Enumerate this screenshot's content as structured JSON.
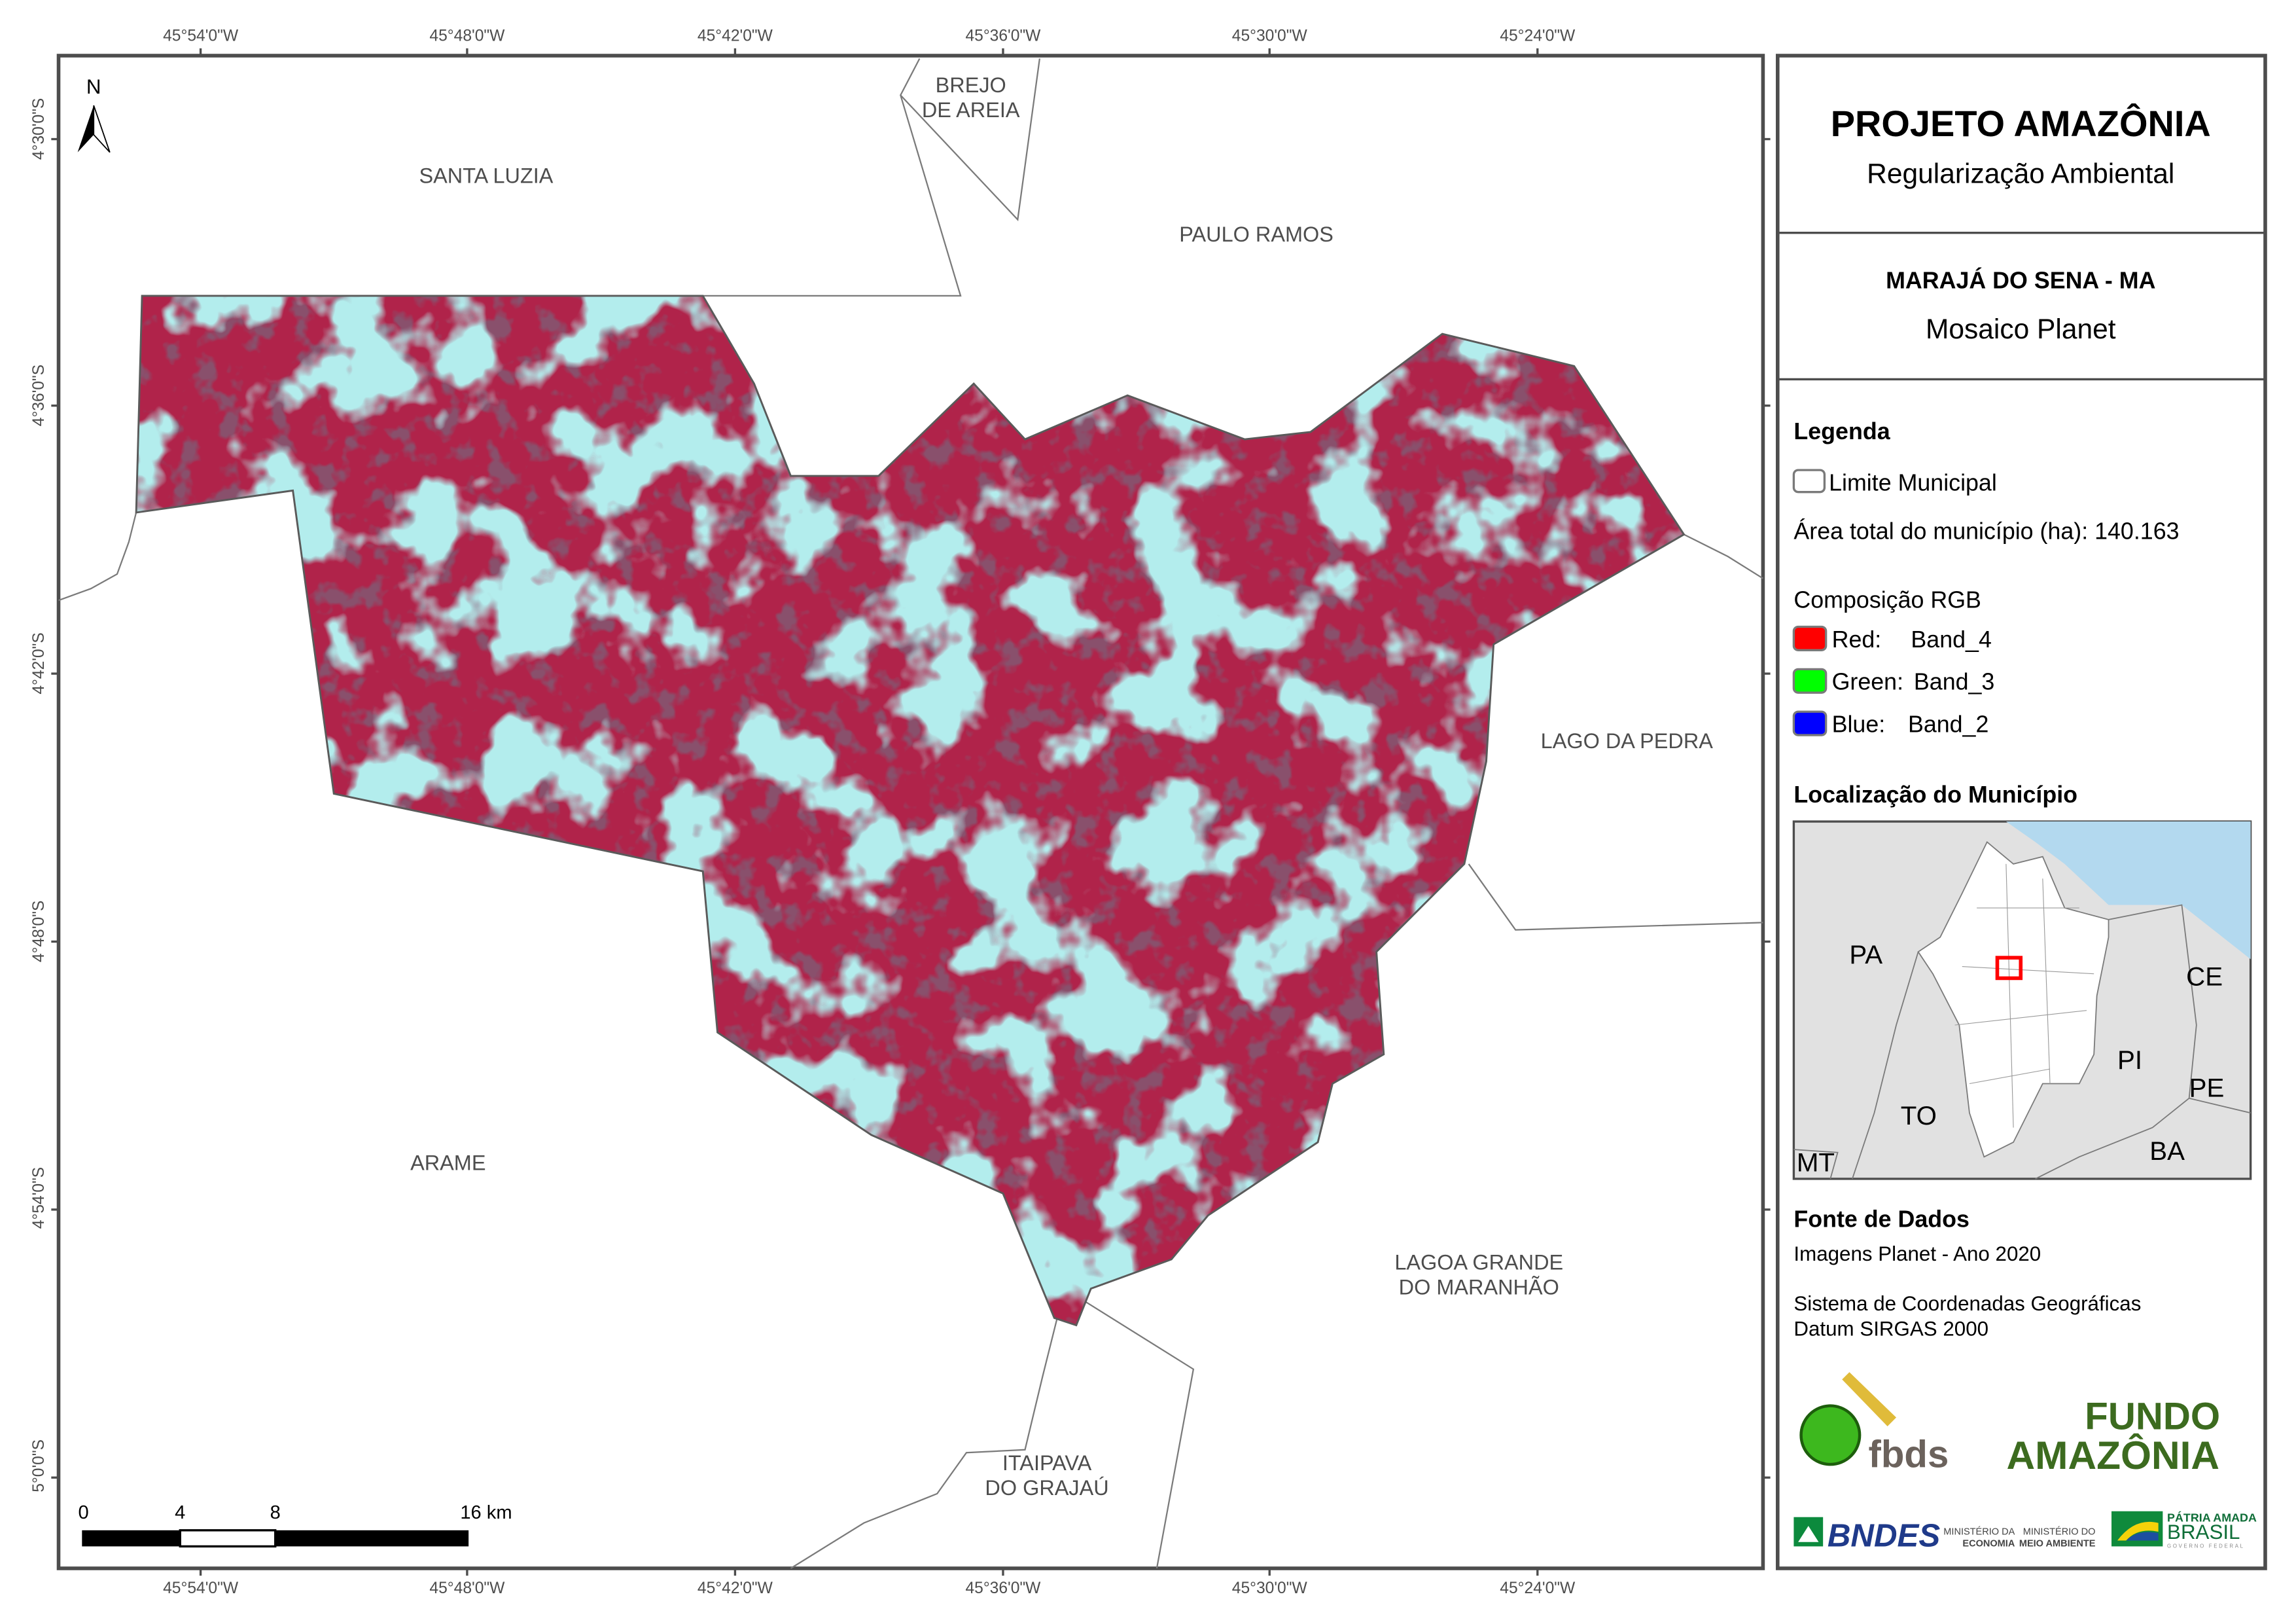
{
  "map": {
    "north_label": "N",
    "top_ticks": [
      "45°54'0\"W",
      "45°48'0\"W",
      "45°42'0\"W",
      "45°36'0\"W",
      "45°30'0\"W",
      "45°24'0\"W"
    ],
    "bottom_ticks": [
      "45°54'0\"W",
      "45°48'0\"W",
      "45°42'0\"W",
      "45°36'0\"W",
      "45°30'0\"W",
      "45°24'0\"W"
    ],
    "left_ticks": [
      "4°30'0\"S",
      "4°36'0\"S",
      "4°42'0\"S",
      "4°48'0\"S",
      "4°54'0\"S",
      "5°0'0\"S"
    ],
    "neighbors": {
      "santa_luzia": "SANTA LUZIA",
      "brejo_1": "BREJO",
      "brejo_2": "DE AREIA",
      "paulo_ramos": "PAULO RAMOS",
      "lago_da_pedra": "LAGO DA PEDRA",
      "arame": "ARAME",
      "lagoa_1": "LAGOA GRANDE",
      "lagoa_2": "DO MARANHÃO",
      "itaipava_1": "ITAIPAVA",
      "itaipava_2": "DO GRAJAÚ"
    },
    "scale_bar": {
      "labels": [
        "0",
        "4",
        "8",
        "16 km"
      ]
    }
  },
  "panel": {
    "title": "PROJETO AMAZÔNIA",
    "subtitle": "Regularização Ambiental",
    "municipality": "MARAJÁ DO SENA - MA",
    "product": "Mosaico Planet",
    "legend_title": "Legenda",
    "legend_limit": "Limite Municipal",
    "area_text": "Área total do município (ha): 140.163",
    "rgb_title": "Composição RGB",
    "bands": [
      {
        "label": "Red:",
        "band": "Band_4",
        "color": "#ff0000"
      },
      {
        "label": "Green:",
        "band": "Band_3",
        "color": "#00ff00"
      },
      {
        "label": "Blue:",
        "band": "Band_2",
        "color": "#0000ff"
      }
    ],
    "location_title": "Localização do Município",
    "inset_labels": [
      "PA",
      "CE",
      "PI",
      "TO",
      "PE",
      "BA",
      "MT"
    ],
    "sources_title": "Fonte de Dados",
    "source_images": "Imagens Planet - Ano 2020",
    "crs_1": "Sistema de Coordenadas Geográficas",
    "crs_2": "Datum SIRGAS 2000",
    "logos": {
      "fbds": "fbds",
      "fundo_1": "FUNDO",
      "fundo_2": "AMAZÔNIA",
      "bndes": "BNDES",
      "min_eco_1": "MINISTÉRIO DA",
      "min_eco_2": "ECONOMIA",
      "min_env_1": "MINISTÉRIO DO",
      "min_env_2": "MEIO AMBIENTE",
      "patria": "PÁTRIA AMADA",
      "brasil": "BRASIL",
      "gov": "GOVERNO FEDERAL"
    }
  }
}
